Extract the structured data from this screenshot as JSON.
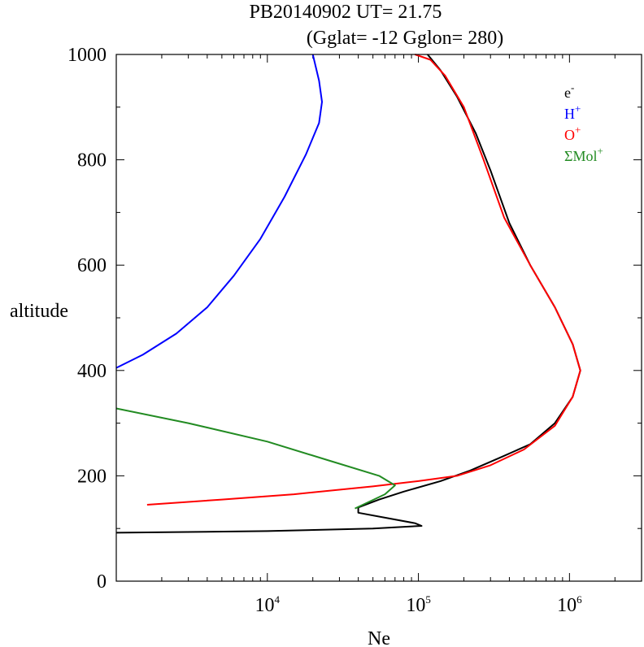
{
  "chart_data": {
    "type": "line",
    "title": "PB20140902   UT=  21.75",
    "subtitle": "(Gglat= -12   Gglon=  280)",
    "xlabel": "Ne",
    "ylabel": "altitude",
    "xscale": "log",
    "xlim": [
      1000,
      3000000
    ],
    "ylim": [
      0,
      1000
    ],
    "x_ticks": [
      {
        "base": "10",
        "exp": "4",
        "value": 10000
      },
      {
        "base": "10",
        "exp": "5",
        "value": 100000
      },
      {
        "base": "10",
        "exp": "6",
        "value": 1000000
      }
    ],
    "y_ticks": [
      {
        "label": "0",
        "value": 0
      },
      {
        "label": "200",
        "value": 200
      },
      {
        "label": "400",
        "value": 400
      },
      {
        "label": "600",
        "value": 600
      },
      {
        "label": "800",
        "value": 800
      },
      {
        "label": "1000",
        "value": 1000
      }
    ],
    "legend_position": "top-right",
    "series": [
      {
        "name": "e",
        "name_sup": "-",
        "color": "#000000",
        "points": [
          [
            1000,
            92
          ],
          [
            10000,
            95
          ],
          [
            50000,
            100
          ],
          [
            105000,
            105
          ],
          [
            95000,
            110
          ],
          [
            40000,
            130
          ],
          [
            40000,
            140
          ],
          [
            55000,
            155
          ],
          [
            80000,
            170
          ],
          [
            140000,
            190
          ],
          [
            220000,
            210
          ],
          [
            350000,
            235
          ],
          [
            550000,
            260
          ],
          [
            800000,
            300
          ],
          [
            1050000,
            350
          ],
          [
            1180000,
            400
          ],
          [
            1050000,
            450
          ],
          [
            800000,
            520
          ],
          [
            550000,
            600
          ],
          [
            400000,
            680
          ],
          [
            300000,
            780
          ],
          [
            240000,
            850
          ],
          [
            180000,
            920
          ],
          [
            140000,
            970
          ],
          [
            115000,
            1000
          ]
        ]
      },
      {
        "name": "H",
        "name_sup": "+",
        "color": "#0000ff",
        "points": [
          [
            1000,
            405
          ],
          [
            1500,
            430
          ],
          [
            2500,
            470
          ],
          [
            4000,
            520
          ],
          [
            6000,
            580
          ],
          [
            9000,
            650
          ],
          [
            13000,
            730
          ],
          [
            18000,
            810
          ],
          [
            22000,
            870
          ],
          [
            23000,
            910
          ],
          [
            22000,
            950
          ],
          [
            20000,
            1000
          ]
        ]
      },
      {
        "name": "O",
        "name_sup": "+",
        "color": "#ff0000",
        "points": [
          [
            1600,
            145
          ],
          [
            5000,
            155
          ],
          [
            15000,
            165
          ],
          [
            50000,
            180
          ],
          [
            100000,
            190
          ],
          [
            180000,
            200
          ],
          [
            300000,
            220
          ],
          [
            500000,
            250
          ],
          [
            800000,
            295
          ],
          [
            1050000,
            350
          ],
          [
            1180000,
            400
          ],
          [
            1050000,
            450
          ],
          [
            800000,
            520
          ],
          [
            550000,
            600
          ],
          [
            370000,
            690
          ],
          [
            270000,
            800
          ],
          [
            200000,
            900
          ],
          [
            150000,
            960
          ],
          [
            120000,
            990
          ],
          [
            95000,
            1000
          ]
        ]
      },
      {
        "name": "ΣMol",
        "name_sup": "+",
        "color": "#228b22",
        "points": [
          [
            1000,
            328
          ],
          [
            3000,
            300
          ],
          [
            10000,
            265
          ],
          [
            25000,
            230
          ],
          [
            55000,
            200
          ],
          [
            70000,
            182
          ],
          [
            60000,
            165
          ],
          [
            38000,
            138
          ]
        ]
      }
    ]
  }
}
